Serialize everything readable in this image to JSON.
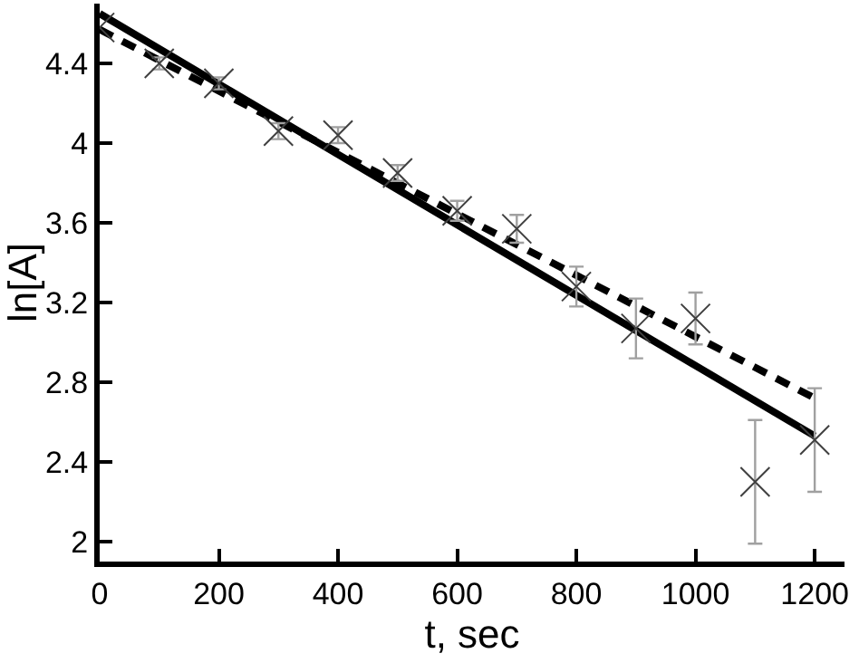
{
  "chart_data": {
    "type": "scatter",
    "xlabel": "t, sec",
    "ylabel": "ln[A]",
    "xlim": [
      0,
      1250
    ],
    "xticks": [
      0,
      200,
      400,
      600,
      800,
      1000,
      1200
    ],
    "ylim": [
      1.9,
      4.7
    ],
    "yticks": [
      2,
      2.4,
      2.8,
      3.2,
      3.6,
      4,
      4.4
    ],
    "grid": false,
    "series": [
      {
        "type": "scatter",
        "marker": "cross",
        "color": "#404040",
        "x": [
          0,
          100,
          200,
          300,
          400,
          500,
          600,
          700,
          800,
          900,
          1000,
          1100,
          1200
        ],
        "values": [
          4.58,
          4.4,
          4.3,
          4.06,
          4.04,
          3.85,
          3.66,
          3.57,
          3.28,
          3.07,
          3.12,
          2.3,
          2.51
        ],
        "errors": [
          null,
          0.03,
          0.03,
          0.04,
          0.04,
          0.04,
          0.05,
          0.07,
          0.1,
          0.15,
          0.13,
          0.31,
          0.26
        ]
      },
      {
        "type": "line",
        "line_style": "solid",
        "color": "#000000",
        "x": [
          0,
          1200
        ],
        "values": [
          4.65,
          2.53
        ]
      },
      {
        "type": "line",
        "line_style": "dashed",
        "color": "#000000",
        "x": [
          0,
          1200
        ],
        "values": [
          4.57,
          2.72
        ]
      }
    ]
  }
}
